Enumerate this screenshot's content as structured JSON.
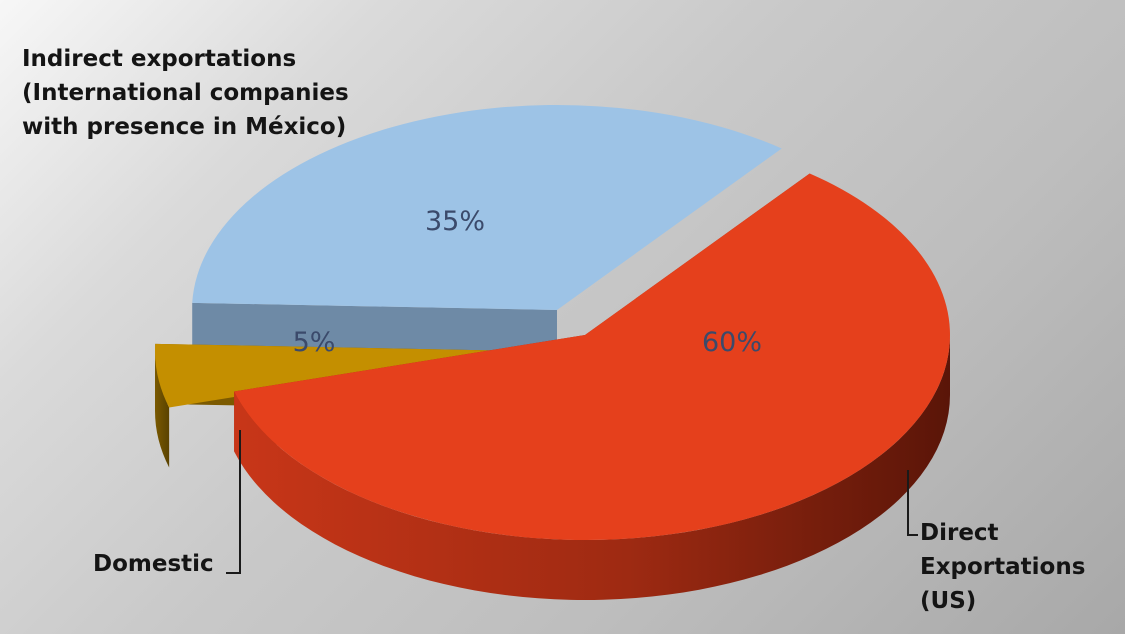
{
  "chart_data": {
    "type": "pie",
    "style": "3d-exploded",
    "slices": [
      {
        "label": "Direct Exportations (US)",
        "lines": [
          "Direct",
          "Exportations",
          "(US)"
        ],
        "value": 60,
        "data_label": "60%",
        "color": "#e5401c",
        "side_color": "#a02a10",
        "label_color": "#3b4a6b"
      },
      {
        "label": "Domestic",
        "lines": [
          "Domestic"
        ],
        "value": 5,
        "data_label": "5%",
        "color": "#c48f00",
        "side_color": "#7c5a00",
        "label_color": "#3b4a6b"
      },
      {
        "label": "Indirect exportations (International companies with presence in México)",
        "lines": [
          "Indirect exportations",
          "(International companies",
          "with presence in México)"
        ],
        "value": 35,
        "data_label": "35%",
        "color": "#9dc3e6",
        "side_color": "#6e8aa6",
        "label_color": "#3b4a6b"
      }
    ],
    "legend": "none"
  }
}
